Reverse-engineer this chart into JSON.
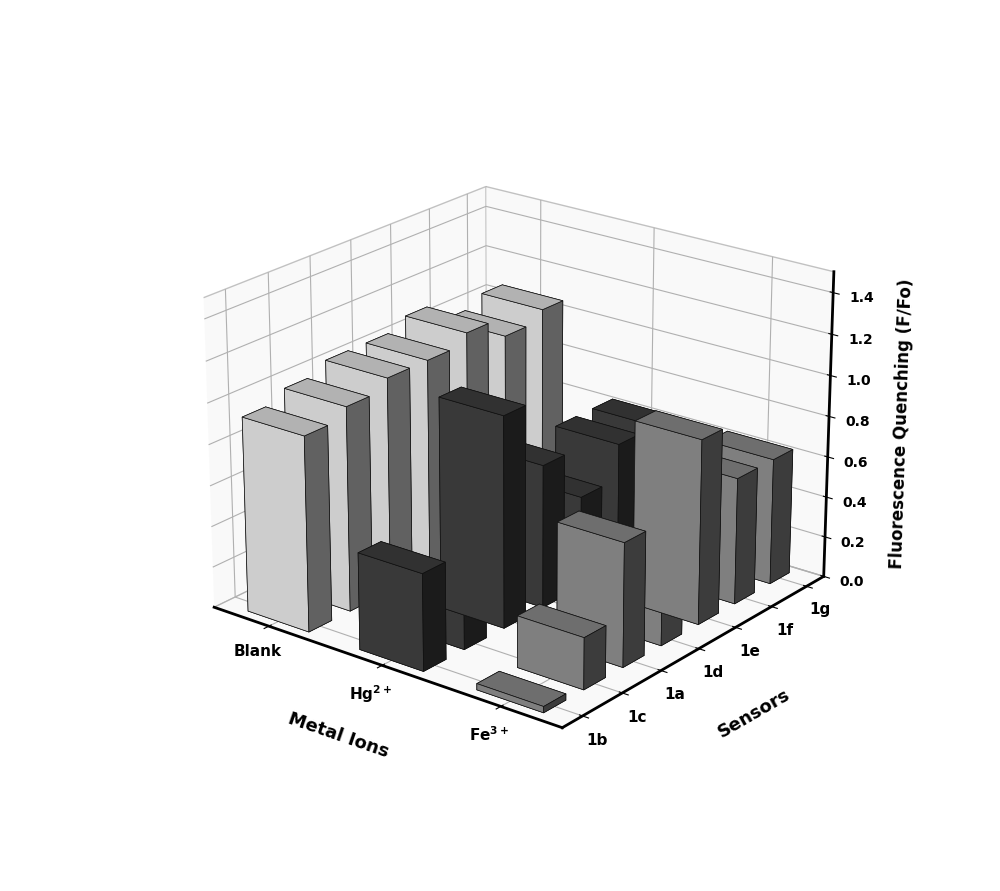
{
  "sensors": [
    "1b",
    "1c",
    "1a",
    "1d",
    "1e",
    "1f",
    "1g"
  ],
  "metal_ions": [
    "Blank",
    "Hg2+",
    "Fe3+"
  ],
  "metal_ion_labels": [
    "Blank",
    "Hg$^{2+}$",
    "Fe$^{3+}$"
  ],
  "values": {
    "Blank": [
      0.95,
      1.0,
      1.05,
      1.05,
      1.1,
      1.0,
      1.05
    ],
    "Hg2+": [
      0.47,
      0.18,
      1.03,
      0.7,
      0.45,
      0.62,
      0.62
    ],
    "Fe3+": [
      0.03,
      0.25,
      0.6,
      0.25,
      0.9,
      0.62,
      0.62
    ]
  },
  "colors": {
    "Blank": "#e8e8e8",
    "Hg2+": "#404040",
    "Fe3+": "#909090"
  },
  "face_colors": {
    "Blank": "#f0f0f0",
    "Hg2+": "#404040",
    "Fe3+": "#909090"
  },
  "zlabel": "Fluorescence Quenching (F/Fo)",
  "xlabel": "Metal Ions",
  "ylabel": "Sensors",
  "zlim": [
    0.0,
    1.5
  ],
  "zticks": [
    0.0,
    0.2,
    0.4,
    0.6,
    0.8,
    1.0,
    1.2,
    1.4
  ],
  "bar_width": 0.55,
  "bar_depth": 0.55,
  "elev": 22,
  "azim": -52
}
